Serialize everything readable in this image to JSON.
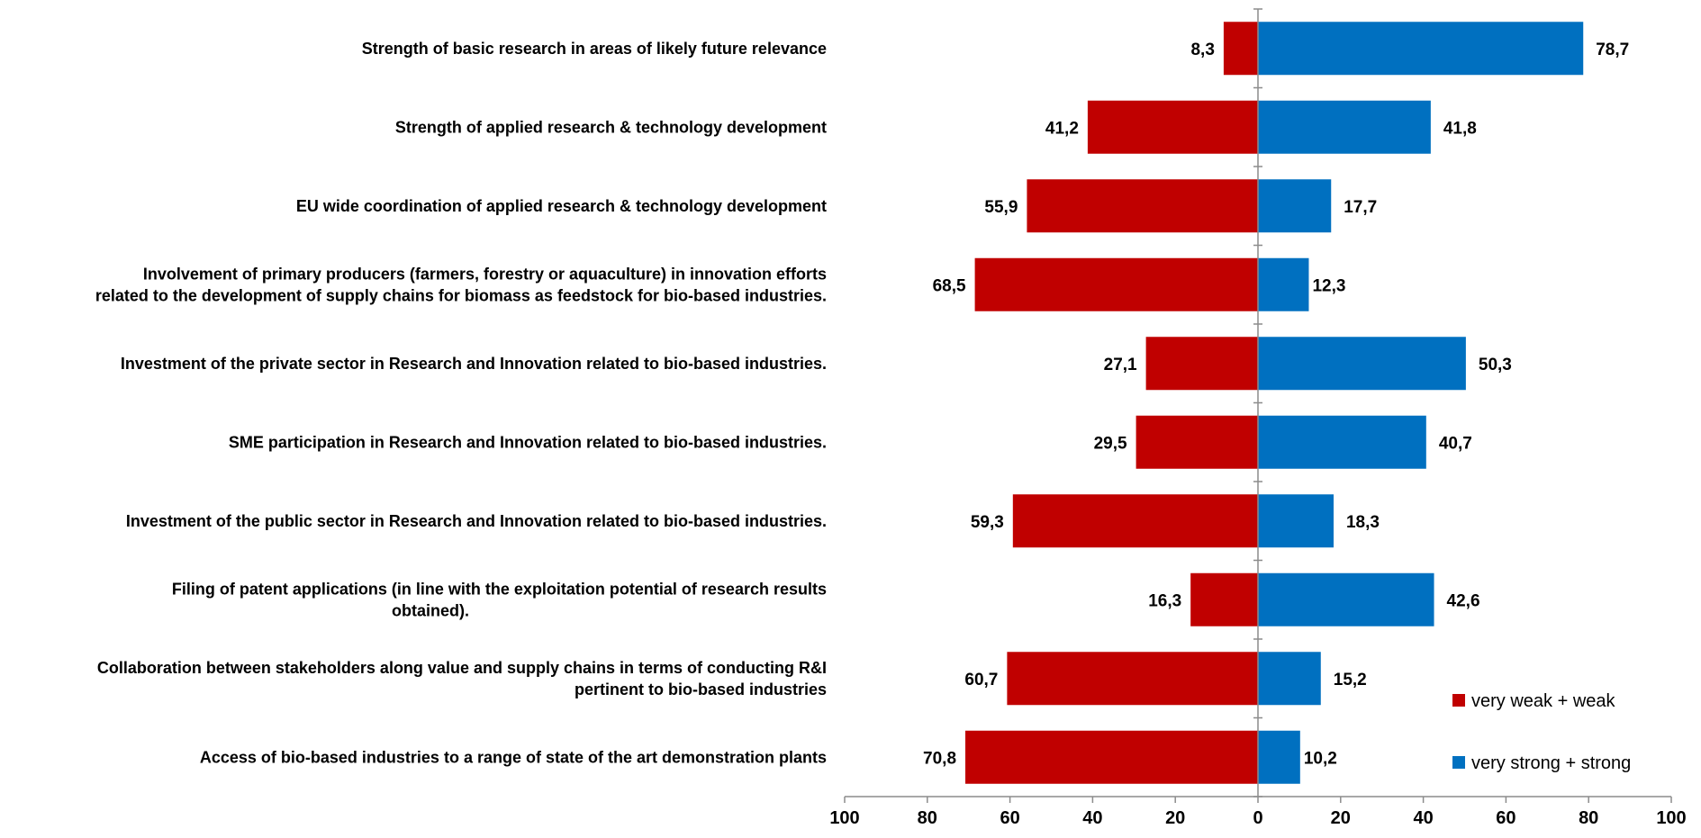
{
  "chart_data": {
    "type": "bar",
    "orientation": "horizontal-diverging",
    "title": "",
    "xlabel": "",
    "ylabel": "",
    "xlim": [
      -100,
      100
    ],
    "x_ticks": [
      "100",
      "80",
      "60",
      "40",
      "20",
      "0",
      "20",
      "40",
      "60",
      "80",
      "100"
    ],
    "grid": false,
    "legend_position": "bottom-right",
    "categories": [
      [
        "Strength of basic research in areas of likely future relevance"
      ],
      [
        "Strength of applied research & technology development"
      ],
      [
        "EU wide coordination of applied research & technology development"
      ],
      [
        "Involvement of primary producers (farmers, forestry or aquaculture) in innovation efforts",
        "related to the development of supply chains for biomass as feedstock for bio-based industries."
      ],
      [
        "Investment of the private sector in Research and Innovation related to bio-based industries."
      ],
      [
        "SME participation in Research and Innovation related to bio-based industries."
      ],
      [
        "Investment of the public sector in Research and Innovation related to bio-based industries."
      ],
      [
        "Filing of patent applications (in line with the exploitation potential of research results",
        "obtained)."
      ],
      [
        "Collaboration between stakeholders along value and supply chains in terms of conducting R&I",
        "pertinent to bio-based industries"
      ],
      [
        "Access of bio-based industries to a range of state of the art demonstration plants"
      ]
    ],
    "series": [
      {
        "name": "very weak + weak",
        "color": "#C00000",
        "direction": "left",
        "values": [
          8.3,
          41.2,
          55.9,
          68.5,
          27.1,
          29.5,
          59.3,
          16.3,
          60.7,
          70.8
        ],
        "labels": [
          "8,3",
          "41,2",
          "55,9",
          "68,5",
          "27,1",
          "29,5",
          "59,3",
          "16,3",
          "60,7",
          "70,8"
        ]
      },
      {
        "name": "very strong + strong",
        "color": "#0070C0",
        "direction": "right",
        "values": [
          78.7,
          41.8,
          17.7,
          12.3,
          50.3,
          40.7,
          18.3,
          42.6,
          15.2,
          10.2
        ],
        "labels": [
          "78,7",
          "41,8",
          "17,7",
          "12,3",
          "50,3",
          "40,7",
          "18,3",
          "42,6",
          "15,2",
          "10,2"
        ]
      }
    ]
  }
}
